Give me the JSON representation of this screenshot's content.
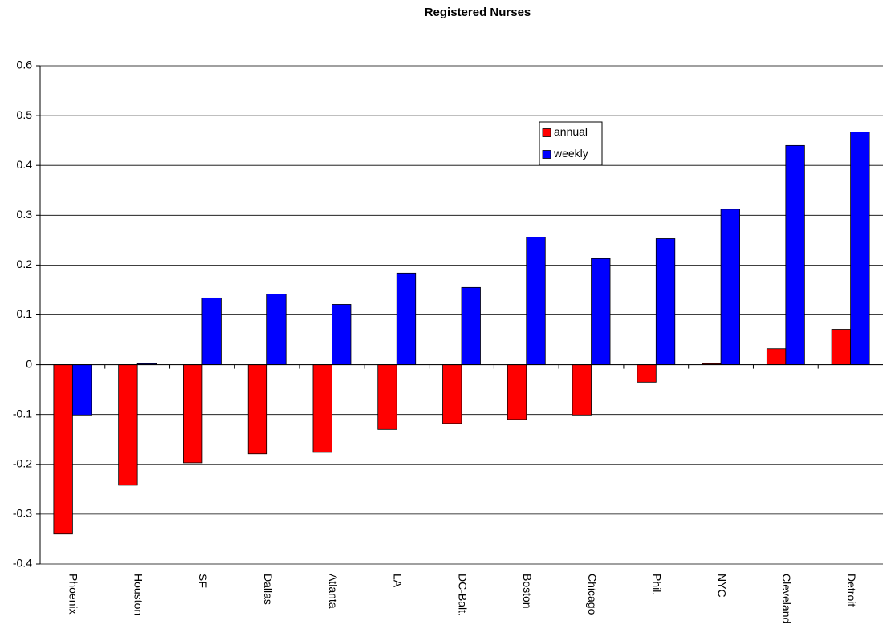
{
  "chart_data": {
    "type": "bar",
    "title": "Registered Nurses",
    "categories": [
      "Phoenix",
      "Houston",
      "SF",
      "Dallas",
      "Atlanta",
      "LA",
      "DC-Balt.",
      "Boston",
      "Chicago",
      "Phil.",
      "NYC",
      "Cleveland",
      "Detroit"
    ],
    "series": [
      {
        "name": "annual",
        "color": "#ff0000",
        "values": [
          -0.34,
          -0.242,
          -0.197,
          -0.179,
          -0.176,
          -0.13,
          -0.118,
          -0.11,
          -0.101,
          -0.035,
          0.002,
          0.032,
          0.071
        ]
      },
      {
        "name": "weekly",
        "color": "#0000ff",
        "values": [
          -0.101,
          0.002,
          0.134,
          0.142,
          0.121,
          0.184,
          0.155,
          0.256,
          0.213,
          0.253,
          0.312,
          0.44,
          0.467
        ]
      }
    ],
    "ylim": [
      -0.4,
      0.6
    ],
    "yticks": [
      0.6,
      0.5,
      0.4,
      0.3,
      0.2,
      0.1,
      0,
      -0.1,
      -0.2,
      -0.3,
      -0.4
    ],
    "grid": true
  }
}
